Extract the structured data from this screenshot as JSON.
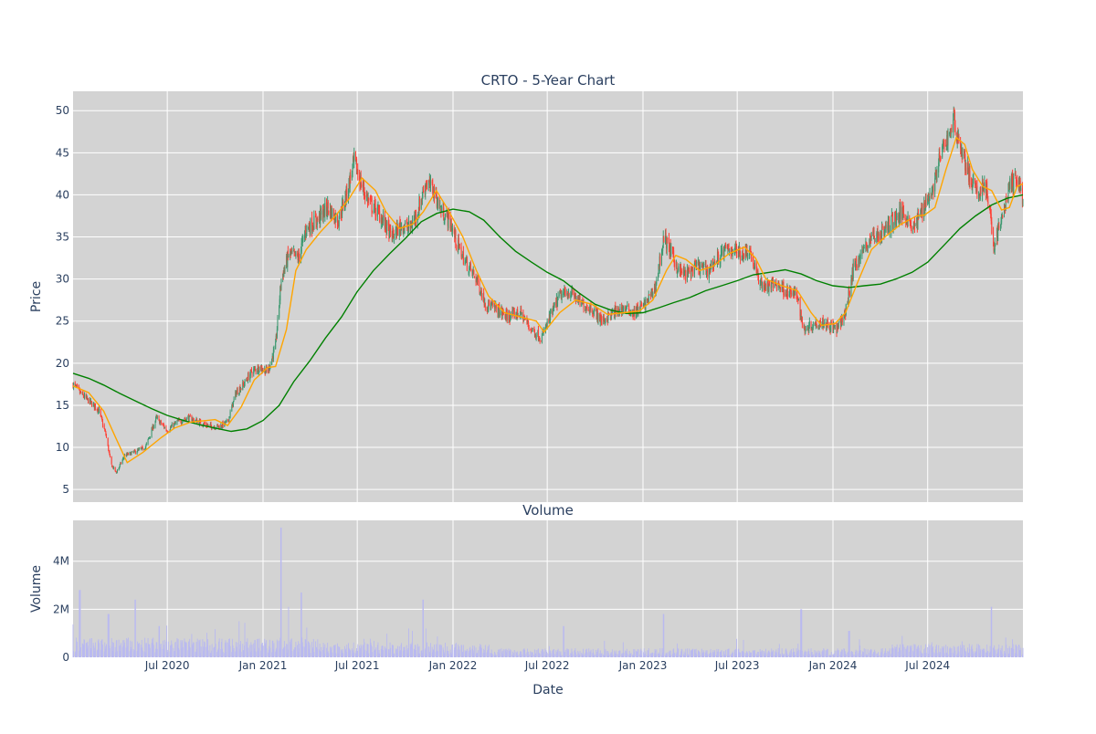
{
  "chart_data": [
    {
      "type": "candlestick",
      "title": "CRTO - 5-Year Chart",
      "ylabel": "Price",
      "xlabel": "",
      "ylim": [
        3.5,
        52.3
      ],
      "y_ticks": [
        5,
        10,
        15,
        20,
        25,
        30,
        35,
        40,
        45,
        50
      ],
      "x_range": [
        "2020-01-02",
        "2024-12-31"
      ],
      "grid": true,
      "legend": "none",
      "colors": {
        "increasing": "#3d9970",
        "decreasing": "#ff4136",
        "ma_short": "#ffa500",
        "ma_long": "#008000",
        "plot_bg": "#d3d3d3",
        "grid": "#ffffff"
      },
      "close_points": [
        [
          "2020-01-02",
          17.5
        ],
        [
          "2020-01-15",
          16.5
        ],
        [
          "2020-02-01",
          15.5
        ],
        [
          "2020-02-20",
          14.5
        ],
        [
          "2020-03-05",
          11.5
        ],
        [
          "2020-03-15",
          8.0
        ],
        [
          "2020-03-25",
          7.0
        ],
        [
          "2020-04-10",
          9.0
        ],
        [
          "2020-05-01",
          9.5
        ],
        [
          "2020-05-20",
          10.0
        ],
        [
          "2020-06-10",
          13.5
        ],
        [
          "2020-07-01",
          12.0
        ],
        [
          "2020-07-20",
          13.0
        ],
        [
          "2020-08-10",
          13.5
        ],
        [
          "2020-09-01",
          13.0
        ],
        [
          "2020-09-20",
          12.5
        ],
        [
          "2020-10-10",
          12.5
        ],
        [
          "2020-10-25",
          13.0
        ],
        [
          "2020-11-10",
          16.5
        ],
        [
          "2020-11-25",
          17.5
        ],
        [
          "2020-12-10",
          19.0
        ],
        [
          "2020-12-25",
          19.5
        ],
        [
          "2021-01-10",
          19.0
        ],
        [
          "2021-01-25",
          22.0
        ],
        [
          "2021-02-05",
          30.0
        ],
        [
          "2021-02-20",
          33.0
        ],
        [
          "2021-03-10",
          32.5
        ],
        [
          "2021-03-25",
          36.0
        ],
        [
          "2021-04-15",
          37.0
        ],
        [
          "2021-05-05",
          38.5
        ],
        [
          "2021-05-25",
          37.0
        ],
        [
          "2021-06-10",
          40.0
        ],
        [
          "2021-06-25",
          44.0
        ],
        [
          "2021-07-10",
          41.0
        ],
        [
          "2021-07-25",
          39.0
        ],
        [
          "2021-08-15",
          37.5
        ],
        [
          "2021-09-05",
          35.0
        ],
        [
          "2021-09-25",
          36.5
        ],
        [
          "2021-10-10",
          36.0
        ],
        [
          "2021-10-25",
          38.0
        ],
        [
          "2021-11-10",
          41.5
        ],
        [
          "2021-11-25",
          40.5
        ],
        [
          "2021-12-10",
          38.0
        ],
        [
          "2021-12-25",
          37.0
        ],
        [
          "2022-01-10",
          34.0
        ],
        [
          "2022-01-25",
          32.0
        ],
        [
          "2022-02-15",
          30.0
        ],
        [
          "2022-03-05",
          27.0
        ],
        [
          "2022-03-25",
          26.5
        ],
        [
          "2022-04-15",
          25.5
        ],
        [
          "2022-05-10",
          26.0
        ],
        [
          "2022-06-01",
          24.0
        ],
        [
          "2022-06-20",
          23.0
        ],
        [
          "2022-07-10",
          26.0
        ],
        [
          "2022-07-25",
          28.0
        ],
        [
          "2022-08-15",
          28.5
        ],
        [
          "2022-09-05",
          27.0
        ],
        [
          "2022-09-25",
          26.5
        ],
        [
          "2022-10-15",
          25.0
        ],
        [
          "2022-11-05",
          26.0
        ],
        [
          "2022-11-25",
          26.5
        ],
        [
          "2022-12-15",
          26.0
        ],
        [
          "2023-01-05",
          27.0
        ],
        [
          "2023-01-25",
          29.0
        ],
        [
          "2023-02-10",
          35.0
        ],
        [
          "2023-02-25",
          33.0
        ],
        [
          "2023-03-10",
          31.0
        ],
        [
          "2023-03-25",
          30.5
        ],
        [
          "2023-04-15",
          31.5
        ],
        [
          "2023-05-05",
          31.0
        ],
        [
          "2023-05-25",
          32.5
        ],
        [
          "2023-06-10",
          33.5
        ],
        [
          "2023-06-25",
          33.5
        ],
        [
          "2023-07-10",
          33.0
        ],
        [
          "2023-07-25",
          33.5
        ],
        [
          "2023-08-10",
          30.0
        ],
        [
          "2023-08-25",
          29.0
        ],
        [
          "2023-09-15",
          29.5
        ],
        [
          "2023-10-05",
          28.5
        ],
        [
          "2023-10-25",
          28.0
        ],
        [
          "2023-11-05",
          24.0
        ],
        [
          "2023-11-20",
          24.5
        ],
        [
          "2023-12-10",
          25.0
        ],
        [
          "2023-12-25",
          24.5
        ],
        [
          "2024-01-10",
          24.0
        ],
        [
          "2024-01-25",
          26.0
        ],
        [
          "2024-02-10",
          31.5
        ],
        [
          "2024-02-25",
          33.0
        ],
        [
          "2024-03-15",
          35.0
        ],
        [
          "2024-04-05",
          35.5
        ],
        [
          "2024-04-25",
          37.0
        ],
        [
          "2024-05-15",
          38.0
        ],
        [
          "2024-06-05",
          36.0
        ],
        [
          "2024-06-25",
          39.0
        ],
        [
          "2024-07-10",
          40.5
        ],
        [
          "2024-07-25",
          44.5
        ],
        [
          "2024-08-10",
          47.0
        ],
        [
          "2024-08-20",
          49.0
        ],
        [
          "2024-09-05",
          45.0
        ],
        [
          "2024-09-20",
          42.0
        ],
        [
          "2024-10-05",
          40.0
        ],
        [
          "2024-10-20",
          41.5
        ],
        [
          "2024-11-05",
          34.0
        ],
        [
          "2024-11-20",
          37.0
        ],
        [
          "2024-12-05",
          41.0
        ],
        [
          "2024-12-20",
          42.0
        ],
        [
          "2024-12-31",
          39.5
        ]
      ],
      "ma_short_points": [
        [
          "2020-01-02",
          17.3
        ],
        [
          "2020-02-01",
          16.5
        ],
        [
          "2020-03-01",
          14.3
        ],
        [
          "2020-03-25",
          11.0
        ],
        [
          "2020-04-15",
          8.2
        ],
        [
          "2020-05-15",
          9.4
        ],
        [
          "2020-06-20",
          11.2
        ],
        [
          "2020-07-15",
          12.3
        ],
        [
          "2020-08-15",
          13.0
        ],
        [
          "2020-10-01",
          13.3
        ],
        [
          "2020-10-25",
          12.6
        ],
        [
          "2020-11-20",
          14.8
        ],
        [
          "2020-12-15",
          18.0
        ],
        [
          "2021-01-10",
          19.5
        ],
        [
          "2021-01-25",
          19.6
        ],
        [
          "2021-02-15",
          24.0
        ],
        [
          "2021-03-05",
          31.0
        ],
        [
          "2021-03-25",
          33.5
        ],
        [
          "2021-04-20",
          35.5
        ],
        [
          "2021-05-20",
          37.5
        ],
        [
          "2021-06-15",
          39.5
        ],
        [
          "2021-07-10",
          42.0
        ],
        [
          "2021-08-05",
          40.5
        ],
        [
          "2021-08-25",
          38.0
        ],
        [
          "2021-09-20",
          36.0
        ],
        [
          "2021-10-15",
          36.5
        ],
        [
          "2021-11-05",
          38.0
        ],
        [
          "2021-11-30",
          40.5
        ],
        [
          "2021-12-20",
          38.5
        ],
        [
          "2022-01-20",
          35.0
        ],
        [
          "2022-02-15",
          31.0
        ],
        [
          "2022-03-10",
          28.0
        ],
        [
          "2022-04-10",
          26.0
        ],
        [
          "2022-05-10",
          25.5
        ],
        [
          "2022-06-10",
          25.0
        ],
        [
          "2022-06-25",
          23.7
        ],
        [
          "2022-07-25",
          26.0
        ],
        [
          "2022-08-25",
          27.5
        ],
        [
          "2022-09-25",
          27.0
        ],
        [
          "2022-10-25",
          25.8
        ],
        [
          "2022-11-25",
          26.0
        ],
        [
          "2022-12-25",
          26.2
        ],
        [
          "2023-01-20",
          27.5
        ],
        [
          "2023-02-15",
          31.0
        ],
        [
          "2023-03-05",
          32.8
        ],
        [
          "2023-03-25",
          32.3
        ],
        [
          "2023-04-20",
          31.0
        ],
        [
          "2023-05-15",
          31.5
        ],
        [
          "2023-06-15",
          33.0
        ],
        [
          "2023-07-15",
          33.8
        ],
        [
          "2023-08-05",
          32.5
        ],
        [
          "2023-08-25",
          30.0
        ],
        [
          "2023-09-25",
          29.2
        ],
        [
          "2023-10-25",
          28.6
        ],
        [
          "2023-11-20",
          26.0
        ],
        [
          "2023-12-10",
          24.5
        ],
        [
          "2024-01-05",
          24.7
        ],
        [
          "2024-01-25",
          26.0
        ],
        [
          "2024-02-20",
          30.0
        ],
        [
          "2024-03-15",
          33.5
        ],
        [
          "2024-04-10",
          35.0
        ],
        [
          "2024-05-10",
          36.5
        ],
        [
          "2024-06-10",
          37.5
        ],
        [
          "2024-06-25",
          37.6
        ],
        [
          "2024-07-15",
          38.5
        ],
        [
          "2024-08-05",
          43.0
        ],
        [
          "2024-08-25",
          46.8
        ],
        [
          "2024-09-10",
          46.0
        ],
        [
          "2024-09-25",
          43.0
        ],
        [
          "2024-10-15",
          41.0
        ],
        [
          "2024-11-01",
          40.5
        ],
        [
          "2024-11-20",
          38.2
        ],
        [
          "2024-12-05",
          38.5
        ],
        [
          "2024-12-20",
          41.0
        ],
        [
          "2024-12-31",
          41.3
        ]
      ],
      "ma_long_points": [
        [
          "2020-01-02",
          18.8
        ],
        [
          "2020-02-01",
          18.2
        ],
        [
          "2020-03-01",
          17.4
        ],
        [
          "2020-04-01",
          16.4
        ],
        [
          "2020-05-01",
          15.5
        ],
        [
          "2020-06-01",
          14.6
        ],
        [
          "2020-07-01",
          13.8
        ],
        [
          "2020-08-01",
          13.2
        ],
        [
          "2020-09-01",
          12.7
        ],
        [
          "2020-10-01",
          12.3
        ],
        [
          "2020-11-01",
          11.9
        ],
        [
          "2020-12-01",
          12.2
        ],
        [
          "2021-01-01",
          13.2
        ],
        [
          "2021-02-01",
          15.0
        ],
        [
          "2021-03-01",
          17.8
        ],
        [
          "2021-04-01",
          20.3
        ],
        [
          "2021-05-01",
          23.0
        ],
        [
          "2021-06-01",
          25.5
        ],
        [
          "2021-07-01",
          28.5
        ],
        [
          "2021-08-01",
          31.0
        ],
        [
          "2021-09-01",
          33.0
        ],
        [
          "2021-10-01",
          34.8
        ],
        [
          "2021-11-01",
          36.8
        ],
        [
          "2021-12-01",
          37.8
        ],
        [
          "2022-01-01",
          38.3
        ],
        [
          "2022-02-01",
          38.0
        ],
        [
          "2022-03-01",
          37.0
        ],
        [
          "2022-04-01",
          35.0
        ],
        [
          "2022-05-01",
          33.3
        ],
        [
          "2022-06-01",
          32.0
        ],
        [
          "2022-07-01",
          30.8
        ],
        [
          "2022-08-01",
          29.8
        ],
        [
          "2022-09-01",
          28.3
        ],
        [
          "2022-10-01",
          27.0
        ],
        [
          "2022-11-01",
          26.3
        ],
        [
          "2022-12-01",
          25.9
        ],
        [
          "2023-01-01",
          26.0
        ],
        [
          "2023-02-01",
          26.6
        ],
        [
          "2023-03-01",
          27.2
        ],
        [
          "2023-04-01",
          27.8
        ],
        [
          "2023-05-01",
          28.6
        ],
        [
          "2023-06-01",
          29.2
        ],
        [
          "2023-07-01",
          29.8
        ],
        [
          "2023-08-01",
          30.5
        ],
        [
          "2023-09-01",
          30.8
        ],
        [
          "2023-10-01",
          31.1
        ],
        [
          "2023-11-01",
          30.6
        ],
        [
          "2023-12-01",
          29.8
        ],
        [
          "2024-01-01",
          29.2
        ],
        [
          "2024-02-01",
          29.0
        ],
        [
          "2024-03-01",
          29.2
        ],
        [
          "2024-04-01",
          29.4
        ],
        [
          "2024-05-01",
          30.0
        ],
        [
          "2024-06-01",
          30.8
        ],
        [
          "2024-07-01",
          32.0
        ],
        [
          "2024-08-01",
          34.0
        ],
        [
          "2024-09-01",
          36.0
        ],
        [
          "2024-10-01",
          37.5
        ],
        [
          "2024-11-01",
          38.8
        ],
        [
          "2024-12-01",
          39.6
        ],
        [
          "2024-12-31",
          40.0
        ]
      ]
    },
    {
      "type": "bar",
      "title": "Volume",
      "ylabel": "Volume",
      "xlabel": "Date",
      "ylim": [
        0,
        5700000
      ],
      "y_ticks": [
        0,
        2000000,
        4000000
      ],
      "y_tick_labels": [
        "0",
        "2M",
        "4M"
      ],
      "x_range": [
        "2020-01-02",
        "2024-12-31"
      ],
      "x_ticks": [
        "2020-07-01",
        "2021-01-01",
        "2021-07-01",
        "2022-01-01",
        "2022-07-01",
        "2023-01-01",
        "2023-07-01",
        "2024-01-01",
        "2024-07-01"
      ],
      "x_tick_labels": [
        "Jul 2020",
        "Jan 2021",
        "Jul 2021",
        "Jan 2022",
        "Jul 2022",
        "Jan 2023",
        "Jul 2023",
        "Jan 2024",
        "Jul 2024"
      ],
      "grid": true,
      "colors": {
        "bar": "#b9b9f0",
        "plot_bg": "#d3d3d3",
        "grid": "#ffffff"
      },
      "volume_spikes": [
        [
          "2020-01-15",
          2800000
        ],
        [
          "2020-03-10",
          1800000
        ],
        [
          "2020-05-01",
          2400000
        ],
        [
          "2020-06-15",
          1300000
        ],
        [
          "2020-11-15",
          1500000
        ],
        [
          "2021-02-05",
          5400000
        ],
        [
          "2021-02-20",
          2100000
        ],
        [
          "2021-03-15",
          2700000
        ],
        [
          "2021-11-05",
          2400000
        ],
        [
          "2022-08-01",
          1300000
        ],
        [
          "2023-02-10",
          1800000
        ],
        [
          "2023-11-01",
          2000000
        ],
        [
          "2024-02-01",
          1100000
        ],
        [
          "2024-11-01",
          2100000
        ]
      ]
    }
  ]
}
